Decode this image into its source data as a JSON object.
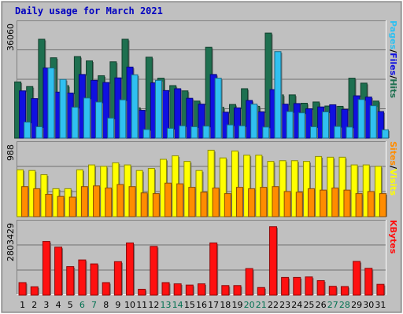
{
  "title": "Daily usage for March 2021",
  "colors": {
    "background": "#c0c0c0",
    "plot_background": "#c0c0c0",
    "grid": "#707070",
    "title": "#0000c0",
    "hits": "#1e7050",
    "files": "#1010e0",
    "pages": "#30c0f0",
    "visits": "#ffff00",
    "sites": "#ff8c00",
    "kbytes": "#ff1010",
    "weekend_label": "#007050",
    "weekday_label": "#000000"
  },
  "chart_data": [
    {
      "type": "bar",
      "title": "Daily usage for March 2021",
      "panel": "hits-files-pages",
      "side_label_parts": [
        "Pages",
        "Files",
        "Hits"
      ],
      "separator": "/",
      "ymax_label": "36060",
      "ylim": [
        0,
        36060
      ],
      "categories": [
        "1",
        "2",
        "3",
        "4",
        "5",
        "6",
        "7",
        "8",
        "9",
        "10",
        "11",
        "12",
        "13",
        "14",
        "15",
        "16",
        "17",
        "18",
        "19",
        "20",
        "21",
        "22",
        "23",
        "24",
        "25",
        "26",
        "27",
        "28",
        "29",
        "30",
        "31"
      ],
      "series": [
        {
          "name": "Hits",
          "color": "#1e7050",
          "values": [
            18200,
            16700,
            32000,
            26000,
            17000,
            26400,
            25000,
            20200,
            24700,
            32000,
            9800,
            26200,
            19400,
            17000,
            15300,
            12000,
            29400,
            10000,
            10900,
            16000,
            10300,
            34000,
            14000,
            14000,
            11300,
            11700,
            10400,
            10300,
            19400,
            17800,
            12000
          ]
        },
        {
          "name": "Files",
          "color": "#1010e0",
          "values": [
            15300,
            12800,
            22700,
            14900,
            14600,
            20600,
            18700,
            18000,
            19500,
            23000,
            9000,
            17900,
            15400,
            16000,
            12900,
            11000,
            20600,
            8400,
            9800,
            12200,
            8500,
            15700,
            11000,
            11200,
            9500,
            10100,
            10800,
            9300,
            13700,
            13300,
            8600
          ]
        },
        {
          "name": "Pages",
          "color": "#30c0f0",
          "values": [
            5200,
            3700,
            22700,
            19000,
            10000,
            13000,
            11700,
            6500,
            12400,
            20500,
            2800,
            18700,
            3200,
            4000,
            3700,
            3900,
            19400,
            4300,
            4000,
            11000,
            3600,
            28000,
            8600,
            8200,
            3700,
            8500,
            3800,
            3600,
            12500,
            10500,
            2700
          ]
        }
      ]
    },
    {
      "type": "bar",
      "panel": "visits-sites",
      "side_label_parts": [
        "Sites",
        "Visits"
      ],
      "separator": "/",
      "ymax_label": "988",
      "ylim": [
        0,
        988
      ],
      "categories": [
        "1",
        "2",
        "3",
        "4",
        "5",
        "6",
        "7",
        "8",
        "9",
        "10",
        "11",
        "12",
        "13",
        "14",
        "15",
        "16",
        "17",
        "18",
        "19",
        "20",
        "21",
        "22",
        "23",
        "24",
        "25",
        "26",
        "27",
        "28",
        "29",
        "30",
        "31"
      ],
      "series": [
        {
          "name": "Visits",
          "color": "#ffff00",
          "values": [
            670,
            660,
            600,
            400,
            400,
            670,
            740,
            720,
            770,
            740,
            660,
            690,
            820,
            870,
            790,
            660,
            950,
            840,
            940,
            880,
            880,
            790,
            800,
            800,
            790,
            860,
            850,
            850,
            740,
            740,
            720
          ]
        },
        {
          "name": "Sites",
          "color": "#ff8c00",
          "values": [
            430,
            400,
            320,
            290,
            280,
            430,
            440,
            410,
            460,
            430,
            340,
            330,
            480,
            470,
            420,
            350,
            410,
            330,
            420,
            400,
            420,
            430,
            360,
            350,
            400,
            380,
            410,
            380,
            330,
            360,
            330
          ]
        }
      ]
    },
    {
      "type": "bar",
      "panel": "kbytes",
      "side_label_parts": [
        "KBytes"
      ],
      "separator": "/",
      "ymax_label": "2803429",
      "ylim": [
        0,
        2803429
      ],
      "categories": [
        "1",
        "2",
        "3",
        "4",
        "5",
        "6",
        "7",
        "8",
        "9",
        "10",
        "11",
        "12",
        "13",
        "14",
        "15",
        "16",
        "17",
        "18",
        "19",
        "20",
        "21",
        "22",
        "23",
        "24",
        "25",
        "26",
        "27",
        "28",
        "29",
        "30",
        "31"
      ],
      "series": [
        {
          "name": "KBytes",
          "color": "#ff1010",
          "values": [
            510000,
            340000,
            2180000,
            1950000,
            1160000,
            1430000,
            1270000,
            510000,
            1360000,
            2120000,
            240000,
            1980000,
            510000,
            460000,
            410000,
            460000,
            2120000,
            390000,
            390000,
            1080000,
            310000,
            2780000,
            720000,
            720000,
            740000,
            590000,
            360000,
            350000,
            1370000,
            1090000,
            440000
          ]
        }
      ]
    }
  ]
}
